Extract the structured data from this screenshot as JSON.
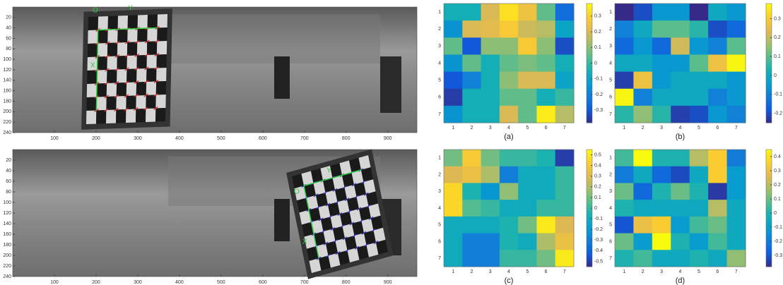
{
  "chart_data": [
    {
      "type": "image",
      "xlim": [
        0,
        970
      ],
      "ylim": [
        0,
        240
      ],
      "xticks": [
        100,
        200,
        300,
        400,
        500,
        600,
        700,
        800,
        900
      ],
      "yticks": [
        20,
        40,
        60,
        80,
        100,
        120,
        140,
        160,
        180,
        200,
        220,
        240
      ],
      "annotations": [
        "O",
        "Y",
        "X"
      ],
      "marker_color": "#e02020"
    },
    {
      "type": "image",
      "xlim": [
        0,
        970
      ],
      "ylim": [
        0,
        240
      ],
      "xticks": [
        100,
        200,
        300,
        400,
        500,
        600,
        700,
        800,
        900
      ],
      "yticks": [
        20,
        40,
        60,
        80,
        100,
        120,
        140,
        160,
        180,
        200,
        220,
        240
      ],
      "annotations": [
        "Y",
        "O",
        "X"
      ],
      "marker_color": "#3030d0"
    },
    {
      "type": "heatmap",
      "caption": "(a)",
      "colormap": "parula",
      "x_categories": [
        "1",
        "2",
        "3",
        "4",
        "5",
        "6",
        "7"
      ],
      "y_categories": [
        "1",
        "2",
        "3",
        "4",
        "5",
        "6",
        "7"
      ],
      "values": [
        [
          -0.05,
          -0.05,
          0.2,
          0.33,
          0.25,
          0.05,
          -0.25
        ],
        [
          -0.15,
          0.2,
          0.22,
          0.28,
          0.18,
          0.15,
          -0.1
        ],
        [
          0.05,
          -0.3,
          0.1,
          0.1,
          0.28,
          0.1,
          -0.32
        ],
        [
          -0.15,
          0.05,
          -0.05,
          0.05,
          0.08,
          0.05,
          -0.05
        ],
        [
          -0.3,
          -0.2,
          -0.05,
          0.1,
          0.2,
          0.2,
          -0.1
        ],
        [
          -0.35,
          -0.05,
          -0.05,
          0.05,
          0.05,
          -0.05,
          0.0
        ],
        [
          -0.15,
          -0.05,
          -0.05,
          0.2,
          0.05,
          0.35,
          0.15
        ]
      ],
      "clim": [
        -0.38,
        0.38
      ],
      "cticks": [
        -0.3,
        -0.2,
        -0.1,
        0,
        0.1,
        0.2,
        0.3
      ]
    },
    {
      "type": "heatmap",
      "caption": "(b)",
      "colormap": "parula",
      "x_categories": [
        "1",
        "2",
        "3",
        "4",
        "5",
        "6",
        "7"
      ],
      "y_categories": [
        "1",
        "2",
        "3",
        "4",
        "5",
        "6",
        "7"
      ],
      "values": [
        [
          -0.25,
          -0.2,
          -0.05,
          -0.05,
          -0.25,
          0.0,
          -0.05
        ],
        [
          -0.1,
          0.0,
          0.1,
          0.1,
          0.05,
          -0.2,
          -0.15
        ],
        [
          -0.15,
          -0.05,
          -0.15,
          0.22,
          -0.05,
          -0.1,
          0.1
        ],
        [
          0.0,
          0.0,
          -0.05,
          -0.05,
          0.1,
          0.27,
          0.37
        ],
        [
          -0.22,
          0.27,
          -0.05,
          0.0,
          0.0,
          0.0,
          -0.05
        ],
        [
          0.37,
          -0.1,
          0.0,
          0.0,
          0.0,
          -0.1,
          -0.05
        ],
        [
          0.05,
          0.15,
          0.05,
          -0.22,
          -0.2,
          -0.05,
          -0.1
        ]
      ],
      "clim": [
        -0.25,
        0.38
      ],
      "cticks": [
        -0.2,
        -0.1,
        0,
        0.1,
        0.2,
        0.3
      ]
    },
    {
      "type": "heatmap",
      "caption": "(c)",
      "colormap": "parula",
      "x_categories": [
        "1",
        "2",
        "3",
        "4",
        "5",
        "6",
        "7"
      ],
      "y_categories": [
        "1",
        "2",
        "3",
        "4",
        "5",
        "6",
        "7"
      ],
      "values": [
        [
          0.1,
          0.4,
          0.1,
          0.0,
          0.0,
          -0.05,
          -0.5
        ],
        [
          0.3,
          0.35,
          0.2,
          -0.3,
          -0.1,
          -0.1,
          0.0
        ],
        [
          0.45,
          -0.05,
          -0.2,
          0.15,
          -0.1,
          -0.1,
          0.0
        ],
        [
          0.45,
          0.05,
          0.0,
          -0.1,
          -0.1,
          0.0,
          0.0
        ],
        [
          -0.1,
          -0.1,
          -0.1,
          -0.05,
          0.1,
          0.5,
          0.3
        ],
        [
          -0.1,
          -0.3,
          -0.3,
          -0.05,
          -0.1,
          0.2,
          0.35
        ],
        [
          -0.1,
          -0.3,
          -0.3,
          0.0,
          0.0,
          0.1,
          0.5
        ]
      ],
      "clim": [
        -0.55,
        0.55
      ],
      "cticks": [
        -0.5,
        -0.4,
        -0.3,
        -0.2,
        -0.1,
        0,
        0.1,
        0.2,
        0.3,
        0.4,
        0.5
      ]
    },
    {
      "type": "heatmap",
      "caption": "(d)",
      "colormap": "parula",
      "x_categories": [
        "1",
        "2",
        "3",
        "4",
        "5",
        "6",
        "7"
      ],
      "y_categories": [
        "1",
        "2",
        "3",
        "4",
        "5",
        "6",
        "7"
      ],
      "values": [
        [
          0.05,
          0.45,
          0.0,
          0.0,
          0.2,
          0.35,
          -0.2
        ],
        [
          -0.2,
          -0.05,
          -0.25,
          -0.32,
          -0.05,
          0.35,
          -0.1
        ],
        [
          0.1,
          -0.25,
          0.0,
          0.1,
          0.0,
          -0.35,
          -0.1
        ],
        [
          0.0,
          -0.05,
          -0.05,
          -0.05,
          -0.05,
          0.2,
          -0.05
        ],
        [
          -0.3,
          0.3,
          0.35,
          -0.1,
          0.05,
          0.1,
          -0.05
        ],
        [
          0.1,
          -0.1,
          0.45,
          0.0,
          -0.1,
          0.05,
          -0.05
        ],
        [
          0.0,
          0.05,
          -0.05,
          -0.05,
          0.0,
          -0.05,
          0.15
        ]
      ],
      "clim": [
        -0.38,
        0.45
      ],
      "cticks": [
        -0.3,
        -0.2,
        -0.1,
        0,
        0.1,
        0.2,
        0.3,
        0.4
      ]
    }
  ]
}
